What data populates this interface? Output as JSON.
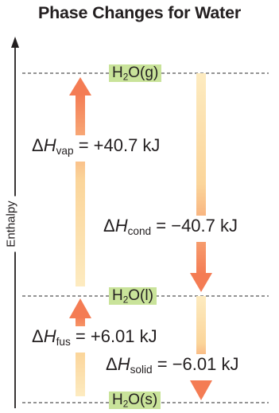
{
  "title": "Phase Changes for Water",
  "axis_label": "Enthalpy",
  "states": {
    "gas": {
      "base": "H",
      "sub": "2",
      "rest": "O(g)"
    },
    "liquid": {
      "base": "H",
      "sub": "2",
      "rest": "O(l)"
    },
    "solid": {
      "base": "H",
      "sub": "2",
      "rest": "O(s)"
    }
  },
  "changes": {
    "vaporization": {
      "symbol": "H",
      "sub": "vap",
      "value": "= +40.7 kJ"
    },
    "condensation": {
      "symbol": "H",
      "sub": "cond",
      "value": "= −40.7 kJ"
    },
    "fusion": {
      "symbol": "H",
      "sub": "fus",
      "value": "= +6.01 kJ"
    },
    "solidification": {
      "symbol": "H",
      "sub": "solid",
      "value": "= −6.01 kJ"
    }
  },
  "delta": "Δ",
  "colors": {
    "level_line": "#555555",
    "state_bg": "#c9e39a",
    "arrow_light": "#fbe3a8",
    "arrow_dark": "#f47c54"
  }
}
